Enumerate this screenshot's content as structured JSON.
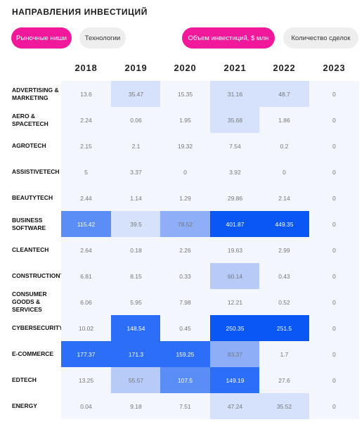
{
  "title": "НАПРАВЛЕНИЯ ИНВЕСТИЦИЙ",
  "filters": {
    "market": "Рыночные ниши",
    "tech": "Технологии",
    "volume": "Объем инвестиций, $ млн",
    "deals": "Количество сделок"
  },
  "years": [
    "2018",
    "2019",
    "2020",
    "2021",
    "2022",
    "2023"
  ],
  "rows": [
    {
      "label": "ADVERTISING &\nMARKETING",
      "values": [
        "13.6",
        "35.47",
        "15.35",
        "31.16",
        "48.7",
        "0"
      ]
    },
    {
      "label": "AERO &\nSPACETECH",
      "values": [
        "2.24",
        "0.06",
        "1.95",
        "35.68",
        "1.86",
        "0"
      ]
    },
    {
      "label": "AGROTECH",
      "values": [
        "2.15",
        "2.1",
        "19.32",
        "7.54",
        "0.2",
        "0"
      ]
    },
    {
      "label": "ASSISTIVETECH",
      "values": [
        "5",
        "3.37",
        "0",
        "3.92",
        "0",
        "0"
      ]
    },
    {
      "label": "BEAUTYTECH",
      "values": [
        "2.44",
        "1.14",
        "1.29",
        "29.86",
        "2.14",
        "0"
      ]
    },
    {
      "label": "BUSINESS\nSOFTWARE",
      "values": [
        "115.42",
        "39.5",
        "78.52",
        "401.87",
        "449.35",
        "0"
      ]
    },
    {
      "label": "CLEANTECH",
      "values": [
        "2.64",
        "0.18",
        "2.26",
        "19.63",
        "2.99",
        "0"
      ]
    },
    {
      "label": "CONSTRUCTIONTECH",
      "values": [
        "6.81",
        "8.15",
        "0.33",
        "60.14",
        "0.43",
        "0"
      ]
    },
    {
      "label": "CONSUMER\nGOODS &\nSERVICES",
      "values": [
        "6.06",
        "5.95",
        "7.98",
        "12.21",
        "0.52",
        "0"
      ]
    },
    {
      "label": "CYBERSECURITY",
      "values": [
        "10.02",
        "148.54",
        "0.45",
        "250.35",
        "251.5",
        "0"
      ]
    },
    {
      "label": "E-COMMERCE",
      "values": [
        "177.37",
        "171.3",
        "159.25",
        "83.37",
        "1.7",
        "0"
      ]
    },
    {
      "label": "EDTECH",
      "values": [
        "13.25",
        "55.57",
        "107.5",
        "149.19",
        "27.6",
        "0"
      ]
    },
    {
      "label": "ENERGY",
      "values": [
        "0.04",
        "9.18",
        "7.51",
        "47.24",
        "35.52",
        "0"
      ]
    }
  ],
  "colors": {
    "accent": "#f2189b",
    "pill_inactive": "#eeeeef",
    "cell_base": "#f3f6fd",
    "scale": [
      "#f3f6fd",
      "#d6e1fb",
      "#b7cbf9",
      "#8eaff7",
      "#5a8ef6",
      "#2c6ef7",
      "#0a57f5"
    ]
  }
}
